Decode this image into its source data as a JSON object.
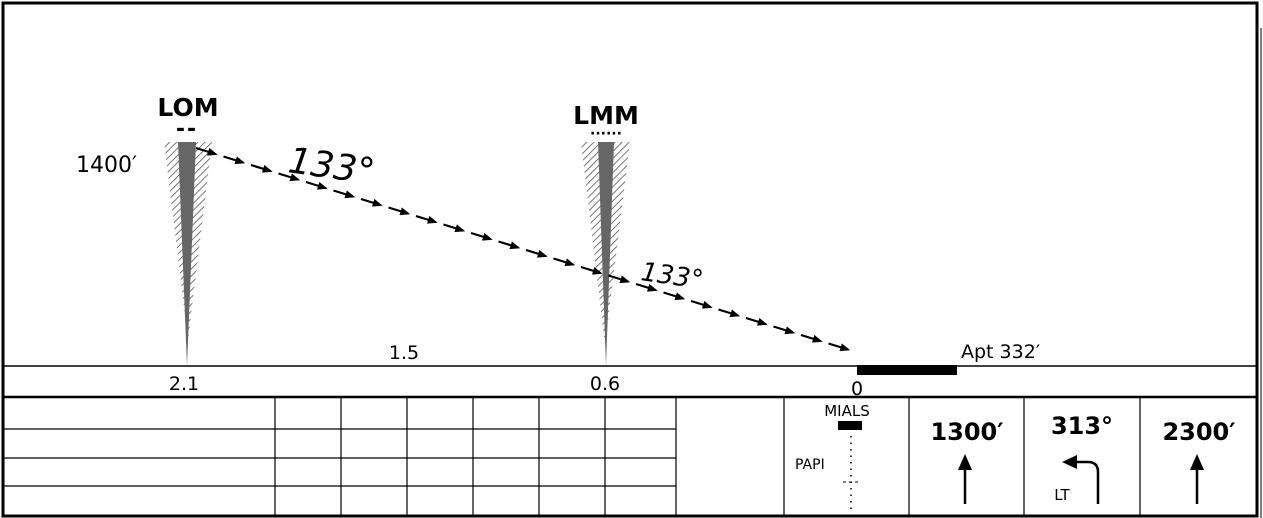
{
  "profile": {
    "fixes": [
      {
        "id": "lom",
        "name": "LOM",
        "ident": "--",
        "altitude": "1400′",
        "distance": "2.1"
      },
      {
        "id": "lmm",
        "name": "LMM",
        "ident": "······",
        "distance": "0.6"
      }
    ],
    "course_labels": [
      "133°",
      "133°"
    ],
    "segment_distance": "1.5",
    "threshold_distance": "0",
    "airport_elevation": "Apt 332′"
  },
  "minimums_table": {
    "rows": 4,
    "columns": 6
  },
  "lighting": {
    "mials": "MIALS",
    "papi": "PAPI"
  },
  "missed_approach": {
    "steps": [
      {
        "label": "1300′",
        "icon": "arrow-up-icon"
      },
      {
        "label": "313°",
        "icon": "left-turn-arrow-icon",
        "note": "LT"
      },
      {
        "label": "2300′",
        "icon": "arrow-up-icon"
      }
    ]
  },
  "colors": {
    "ink": "#000000",
    "marker_cone": "#666666",
    "hatch": "#555555"
  }
}
